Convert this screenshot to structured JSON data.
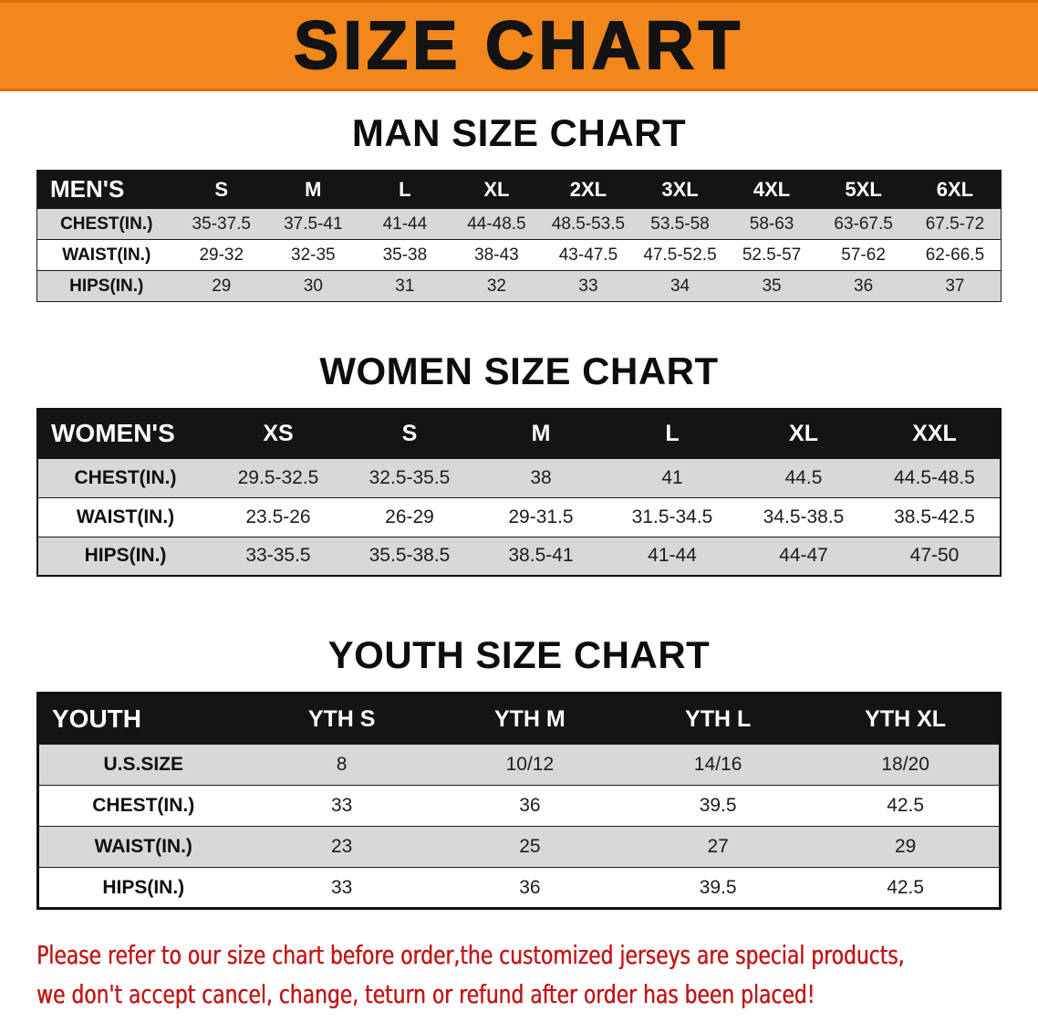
{
  "banner": {
    "title": "SIZE CHART",
    "bg_color": "#F2871C"
  },
  "sections": [
    {
      "heading": "MAN SIZE CHART",
      "table": {
        "header": [
          "MEN'S",
          "S",
          "M",
          "L",
          "XL",
          "2XL",
          "3XL",
          "4XL",
          "5XL",
          "6XL"
        ],
        "rows": [
          [
            "CHEST(IN.)",
            "35-37.5",
            "37.5-41",
            "41-44",
            "44-48.5",
            "48.5-53.5",
            "53.5-58",
            "58-63",
            "63-67.5",
            "67.5-72"
          ],
          [
            "WAIST(IN.)",
            "29-32",
            "32-35",
            "35-38",
            "38-43",
            "43-47.5",
            "47.5-52.5",
            "52.5-57",
            "57-62",
            "62-66.5"
          ],
          [
            "HIPS(IN.)",
            "29",
            "30",
            "31",
            "32",
            "33",
            "34",
            "35",
            "36",
            "37"
          ]
        ]
      }
    },
    {
      "heading": "WOMEN SIZE CHART",
      "table": {
        "header": [
          "WOMEN'S",
          "XS",
          "S",
          "M",
          "L",
          "XL",
          "XXL"
        ],
        "rows": [
          [
            "CHEST(IN.)",
            "29.5-32.5",
            "32.5-35.5",
            "38",
            "41",
            "44.5",
            "44.5-48.5"
          ],
          [
            "WAIST(IN.)",
            "23.5-26",
            "26-29",
            "29-31.5",
            "31.5-34.5",
            "34.5-38.5",
            "38.5-42.5"
          ],
          [
            "HIPS(IN.)",
            "33-35.5",
            "35.5-38.5",
            "38.5-41",
            "41-44",
            "44-47",
            "47-50"
          ]
        ]
      }
    },
    {
      "heading": "YOUTH SIZE CHART",
      "table": {
        "header": [
          "YOUTH",
          "YTH S",
          "YTH M",
          "YTH L",
          "YTH XL"
        ],
        "rows": [
          [
            "U.S.SIZE",
            "8",
            "10/12",
            "14/16",
            "18/20"
          ],
          [
            "CHEST(IN.)",
            "33",
            "36",
            "39.5",
            "42.5"
          ],
          [
            "WAIST(IN.)",
            "23",
            "25",
            "27",
            "29"
          ],
          [
            "HIPS(IN.)",
            "33",
            "36",
            "39.5",
            "42.5"
          ]
        ]
      }
    }
  ],
  "disclaimer": {
    "line1": "Please refer to our size chart before order,the customized jerseys are special products,",
    "line2": "we don't accept cancel, change, teturn or refund after order has been placed!",
    "color": "#C21616"
  }
}
